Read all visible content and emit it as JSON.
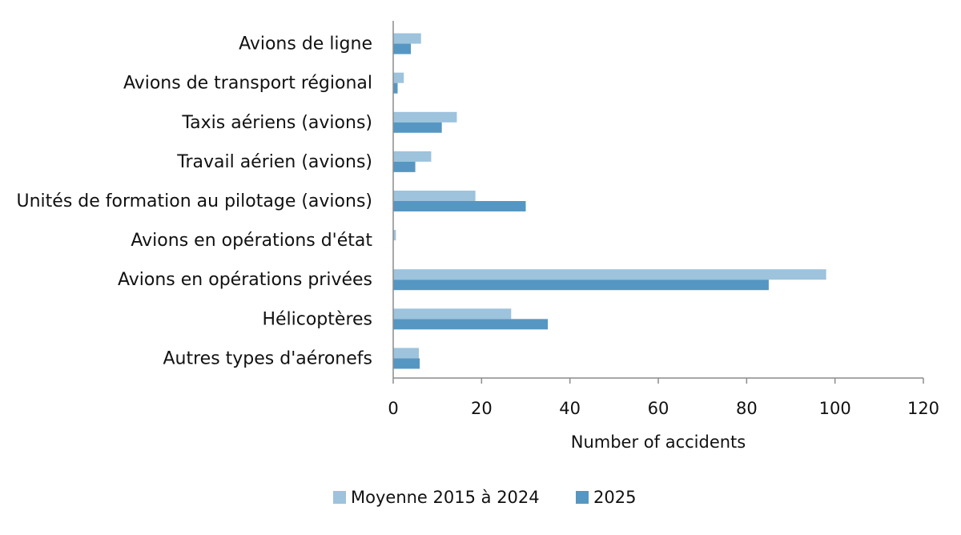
{
  "chart_data": {
    "type": "bar",
    "orientation": "horizontal",
    "categories": [
      "Avions de ligne",
      "Avions de transport régional",
      "Taxis aériens (avions)",
      "Travail aérien (avions)",
      "Unités de formation au pilotage (avions)",
      "Avions en opérations d'état",
      "Avions en opérations privées",
      "Hélicoptères",
      "Autres types d'aéronefs"
    ],
    "series": [
      {
        "name": "Moyenne 2015 à 2024",
        "color": "#9dc3dd",
        "values": [
          6.3,
          2.4,
          14.4,
          8.6,
          18.6,
          0.6,
          98,
          26.7,
          5.8
        ]
      },
      {
        "name": "2025",
        "color": "#5597c2",
        "values": [
          4,
          1,
          11,
          5,
          30,
          0,
          85,
          35,
          6
        ]
      }
    ],
    "xlabel": "Number of accidents",
    "xlim": [
      0,
      120
    ],
    "xticks": [
      0,
      20,
      40,
      60,
      80,
      100,
      120
    ],
    "grid": false,
    "legend_position": "bottom"
  }
}
